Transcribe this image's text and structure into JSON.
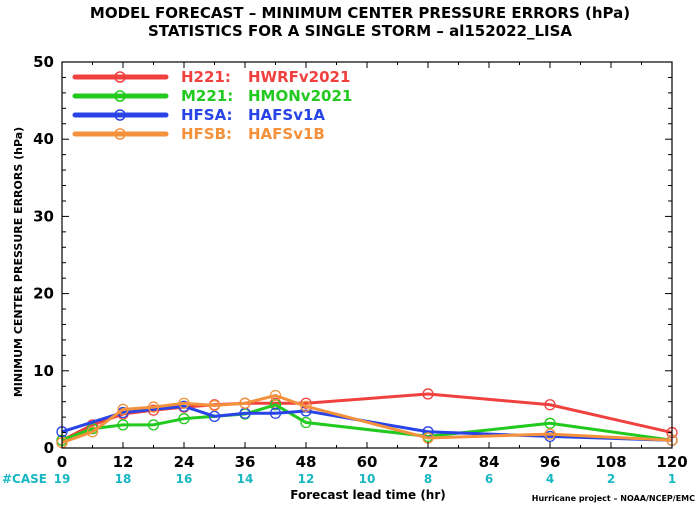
{
  "chart_data": {
    "type": "line",
    "title_line1": "MODEL FORECAST – MINIMUM CENTER PRESSURE ERRORS (hPa)",
    "title_line2": "STATISTICS FOR A SINGLE STORM – al152022_LISA",
    "ylabel": "MINIMUM CENTER PRESSURE ERRORS (hPa)",
    "xlabel": "Forecast lead time (hr)",
    "xlim": [
      0,
      120
    ],
    "ylim": [
      0,
      50
    ],
    "x_ticks": [
      "0",
      "12",
      "24",
      "36",
      "48",
      "60",
      "72",
      "84",
      "96",
      "108",
      "120"
    ],
    "y_ticks": [
      "0",
      "10",
      "20",
      "30",
      "40",
      "50"
    ],
    "case_label": "#CASE",
    "case_counts": [
      "19",
      "18",
      "16",
      "14",
      "12",
      "10",
      "8",
      "6",
      "4",
      "2",
      "1"
    ],
    "credit": "Hurricane project – NOAA/NCEP/EMC",
    "series": [
      {
        "code": "H221:",
        "name": "HWRFv2021",
        "color": "#f0413f",
        "x": [
          0,
          6,
          12,
          18,
          24,
          30,
          36,
          42,
          48,
          72,
          96,
          120
        ],
        "y": [
          1.0,
          3.0,
          4.4,
          4.9,
          5.3,
          5.6,
          5.8,
          5.8,
          5.8,
          7.0,
          5.6,
          2.0
        ]
      },
      {
        "code": "M221:",
        "name": "HMONv2021",
        "color": "#22c91e",
        "x": [
          0,
          6,
          12,
          18,
          24,
          36,
          42,
          48,
          72,
          96,
          120
        ],
        "y": [
          1.0,
          2.5,
          3.0,
          3.0,
          3.8,
          4.4,
          5.6,
          3.3,
          1.5,
          3.2,
          1.0
        ]
      },
      {
        "code": "HFSA:",
        "name": "HAFSv1A",
        "color": "#2844e6",
        "x": [
          0,
          12,
          24,
          30,
          36,
          42,
          48,
          72,
          96,
          120
        ],
        "y": [
          2.1,
          4.6,
          5.4,
          4.1,
          4.5,
          4.5,
          4.8,
          2.1,
          1.5,
          1.0
        ]
      },
      {
        "code": "HFSB:",
        "name": "HAFSv1B",
        "color": "#f4913c",
        "x": [
          0,
          6,
          12,
          18,
          24,
          30,
          36,
          42,
          48,
          72,
          96,
          120
        ],
        "y": [
          0.7,
          2.1,
          5.0,
          5.3,
          5.8,
          5.5,
          5.8,
          6.8,
          5.4,
          1.3,
          1.8,
          1.0
        ]
      }
    ]
  }
}
